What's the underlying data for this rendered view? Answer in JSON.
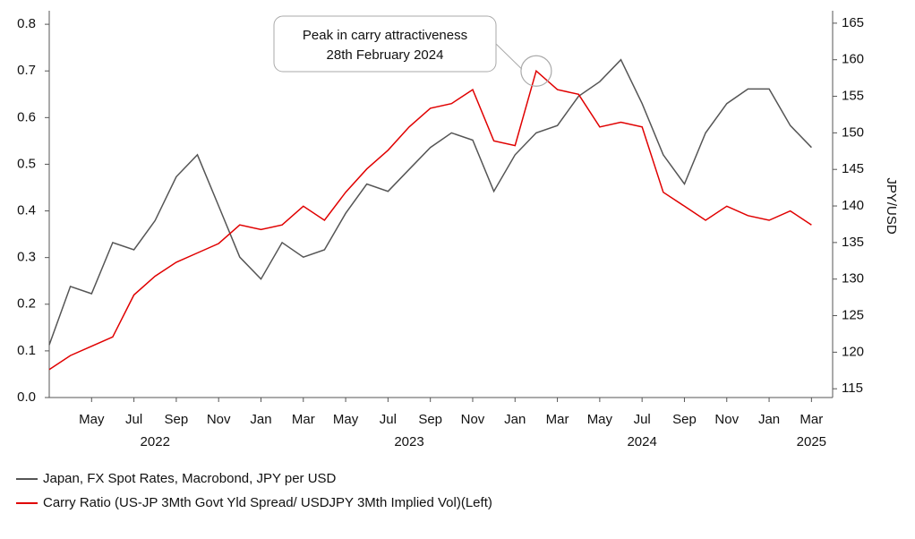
{
  "chart_data": {
    "type": "line",
    "annotation": [
      "Peak in carry attractiveness",
      "28th February 2024"
    ],
    "y2_label": "JPY/USD",
    "x": [
      "2022-03",
      "2022-04",
      "2022-05",
      "2022-06",
      "2022-07",
      "2022-08",
      "2022-09",
      "2022-10",
      "2022-11",
      "2022-12",
      "2023-01",
      "2023-02",
      "2023-03",
      "2023-04",
      "2023-05",
      "2023-06",
      "2023-07",
      "2023-08",
      "2023-09",
      "2023-10",
      "2023-11",
      "2023-12",
      "2024-01",
      "2024-02",
      "2024-03",
      "2024-04",
      "2024-05",
      "2024-06",
      "2024-07",
      "2024-08",
      "2024-09",
      "2024-10",
      "2024-11",
      "2024-12",
      "2025-01",
      "2025-02",
      "2025-03"
    ],
    "series": [
      {
        "name": "Japan, FX Spot Rates, Macrobond, JPY per USD",
        "color": "#555555",
        "axis": "y2",
        "values": [
          121,
          129,
          128,
          135,
          134,
          138,
          144,
          147,
          140,
          133,
          130,
          135,
          133,
          134,
          139,
          143,
          142,
          145,
          148,
          150,
          149,
          142,
          147,
          150,
          151,
          155,
          157,
          160,
          154,
          147,
          143,
          150,
          154,
          156,
          156,
          151,
          148
        ]
      },
      {
        "name": "Carry Ratio (US-JP 3Mth Govt Yld Spread/ USDJPY 3Mth Implied Vol)(Left)",
        "color": "#e00000",
        "values": [
          0.06,
          0.09,
          0.11,
          0.13,
          0.22,
          0.26,
          0.29,
          0.31,
          0.33,
          0.37,
          0.36,
          0.37,
          0.41,
          0.38,
          0.44,
          0.49,
          0.53,
          0.58,
          0.62,
          0.63,
          0.66,
          0.55,
          0.54,
          0.7,
          0.66,
          0.65,
          0.58,
          0.59,
          0.58,
          0.44,
          0.41,
          0.38,
          0.41,
          0.39,
          0.38,
          0.4,
          0.37
        ]
      }
    ],
    "xlim": [
      "2022-03",
      "2025-04"
    ],
    "xticks": [
      {
        "value": "2022-05",
        "label": "May"
      },
      {
        "value": "2022-07",
        "label": "Jul"
      },
      {
        "value": "2022-09",
        "label": "Sep"
      },
      {
        "value": "2022-11",
        "label": "Nov"
      },
      {
        "value": "2023-01",
        "label": "Jan"
      },
      {
        "value": "2023-03",
        "label": "Mar"
      },
      {
        "value": "2023-05",
        "label": "May"
      },
      {
        "value": "2023-07",
        "label": "Jul"
      },
      {
        "value": "2023-09",
        "label": "Sep"
      },
      {
        "value": "2023-11",
        "label": "Nov"
      },
      {
        "value": "2024-01",
        "label": "Jan"
      },
      {
        "value": "2024-03",
        "label": "Mar"
      },
      {
        "value": "2024-05",
        "label": "May"
      },
      {
        "value": "2024-07",
        "label": "Jul"
      },
      {
        "value": "2024-09",
        "label": "Sep"
      },
      {
        "value": "2024-11",
        "label": "Nov"
      },
      {
        "value": "2025-01",
        "label": "Jan"
      },
      {
        "value": "2025-03",
        "label": "Mar"
      }
    ],
    "x_year_labels": [
      {
        "value": "2022-08",
        "label": "2022"
      },
      {
        "value": "2023-08",
        "label": "2023"
      },
      {
        "value": "2024-07",
        "label": "2024"
      },
      {
        "value": "2025-03",
        "label": "2025"
      }
    ],
    "ylim": [
      0,
      0.829
    ],
    "yticks": [
      {
        "value": 0,
        "label": "0.0"
      },
      0.1,
      0.2,
      0.3,
      0.4,
      0.5,
      0.6,
      0.7,
      0.8
    ],
    "y2lim": [
      113.8,
      166.7
    ],
    "y2ticks": [
      115,
      120,
      125,
      130,
      135,
      140,
      145,
      150,
      155,
      160,
      165
    ],
    "grid": false
  }
}
